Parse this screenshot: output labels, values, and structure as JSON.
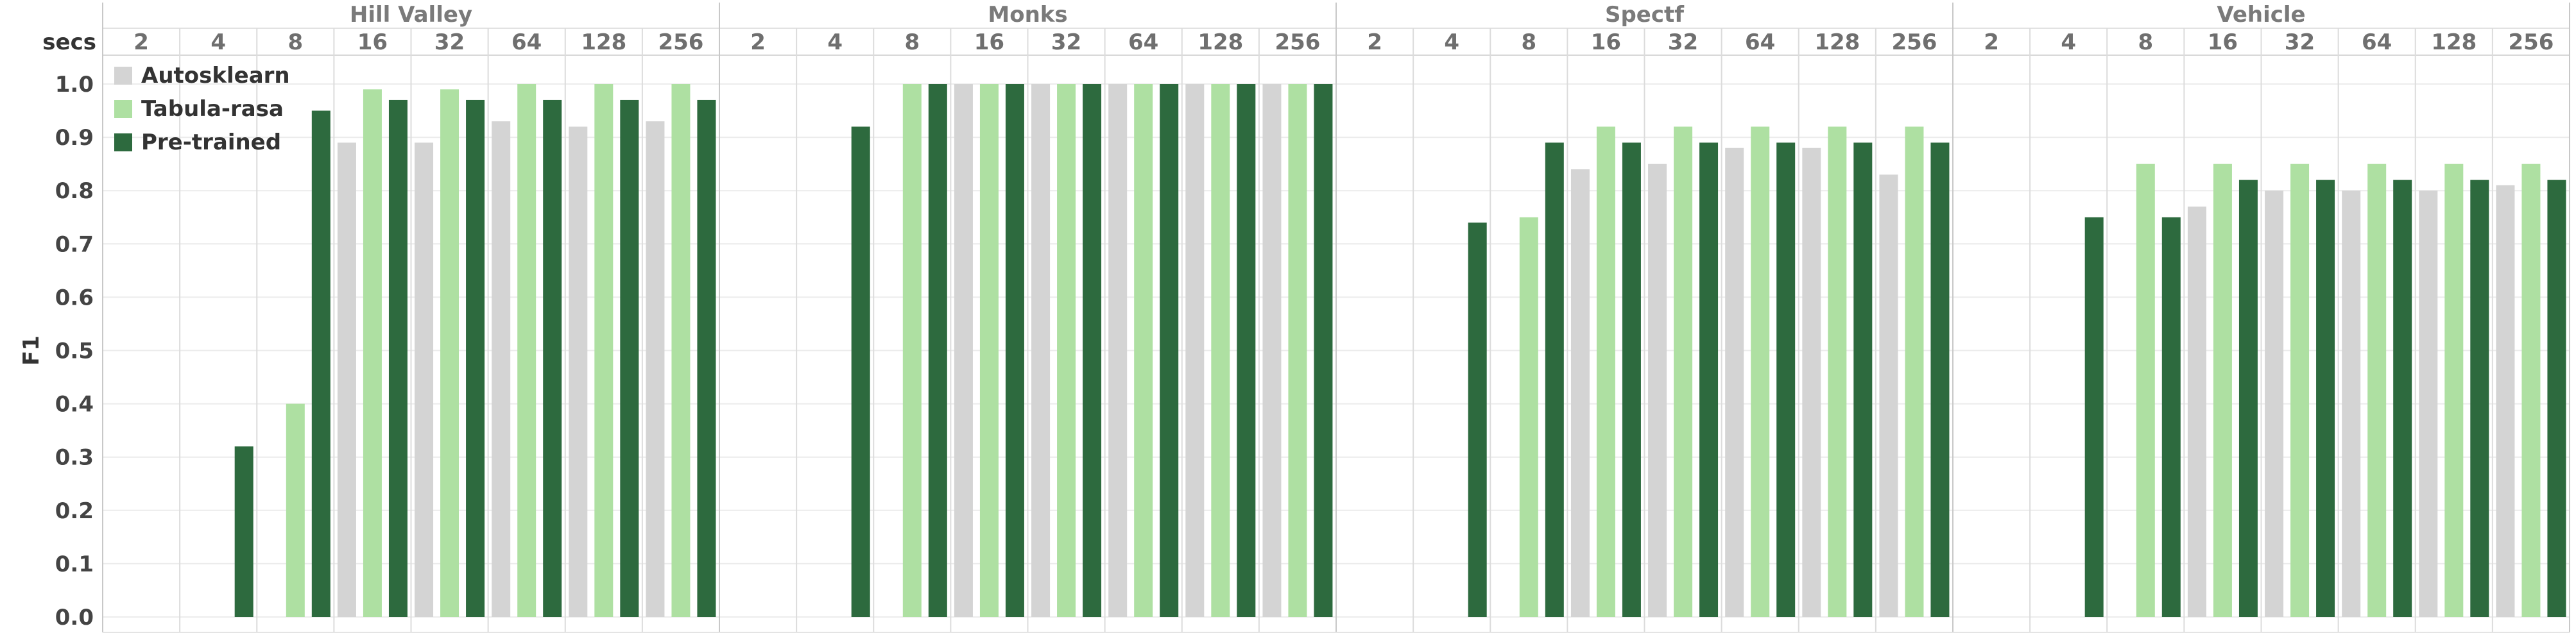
{
  "chart_data": {
    "type": "bar",
    "header_label": "secs",
    "ylabel": "F1",
    "ylim": [
      0,
      1.0
    ],
    "yticks": [
      "0.0",
      "0.1",
      "0.2",
      "0.3",
      "0.4",
      "0.5",
      "0.6",
      "0.7",
      "0.8",
      "0.9",
      "1.0"
    ],
    "categories": [
      "2",
      "4",
      "8",
      "16",
      "32",
      "64",
      "128",
      "256"
    ],
    "legend": {
      "placement": "top-left",
      "entries": [
        "Autosklearn",
        "Tabula-rasa",
        "Pre-trained"
      ]
    },
    "colors": {
      "Autosklearn": "#d4d4d4",
      "Tabula-rasa": "#aee0a2",
      "Pre-trained": "#2d6a3e"
    },
    "facets": [
      {
        "title": "Hill Valley",
        "series": [
          {
            "name": "Autosklearn",
            "values": [
              null,
              null,
              null,
              0.89,
              0.89,
              0.93,
              0.92,
              0.93
            ]
          },
          {
            "name": "Tabula-rasa",
            "values": [
              null,
              null,
              0.4,
              0.99,
              0.99,
              1.0,
              1.0,
              1.0
            ]
          },
          {
            "name": "Pre-trained",
            "values": [
              null,
              0.32,
              0.95,
              0.97,
              0.97,
              0.97,
              0.97,
              0.97
            ]
          }
        ]
      },
      {
        "title": "Monks",
        "series": [
          {
            "name": "Autosklearn",
            "values": [
              null,
              null,
              null,
              1.0,
              1.0,
              1.0,
              1.0,
              1.0
            ]
          },
          {
            "name": "Tabula-rasa",
            "values": [
              null,
              null,
              1.0,
              1.0,
              1.0,
              1.0,
              1.0,
              1.0
            ]
          },
          {
            "name": "Pre-trained",
            "values": [
              null,
              0.92,
              1.0,
              1.0,
              1.0,
              1.0,
              1.0,
              1.0
            ]
          }
        ]
      },
      {
        "title": "Spectf",
        "series": [
          {
            "name": "Autosklearn",
            "values": [
              null,
              null,
              null,
              0.84,
              0.85,
              0.88,
              0.88,
              0.83
            ]
          },
          {
            "name": "Tabula-rasa",
            "values": [
              null,
              null,
              0.75,
              0.92,
              0.92,
              0.92,
              0.92,
              0.92
            ]
          },
          {
            "name": "Pre-trained",
            "values": [
              null,
              0.74,
              0.89,
              0.89,
              0.89,
              0.89,
              0.89,
              0.89
            ]
          }
        ]
      },
      {
        "title": "Vehicle",
        "series": [
          {
            "name": "Autosklearn",
            "values": [
              null,
              null,
              null,
              0.77,
              0.8,
              0.8,
              0.8,
              0.81
            ]
          },
          {
            "name": "Tabula-rasa",
            "values": [
              null,
              null,
              0.85,
              0.85,
              0.85,
              0.85,
              0.85,
              0.85
            ]
          },
          {
            "name": "Pre-trained",
            "values": [
              null,
              0.75,
              0.75,
              0.82,
              0.82,
              0.82,
              0.82,
              0.82
            ]
          }
        ]
      }
    ]
  }
}
